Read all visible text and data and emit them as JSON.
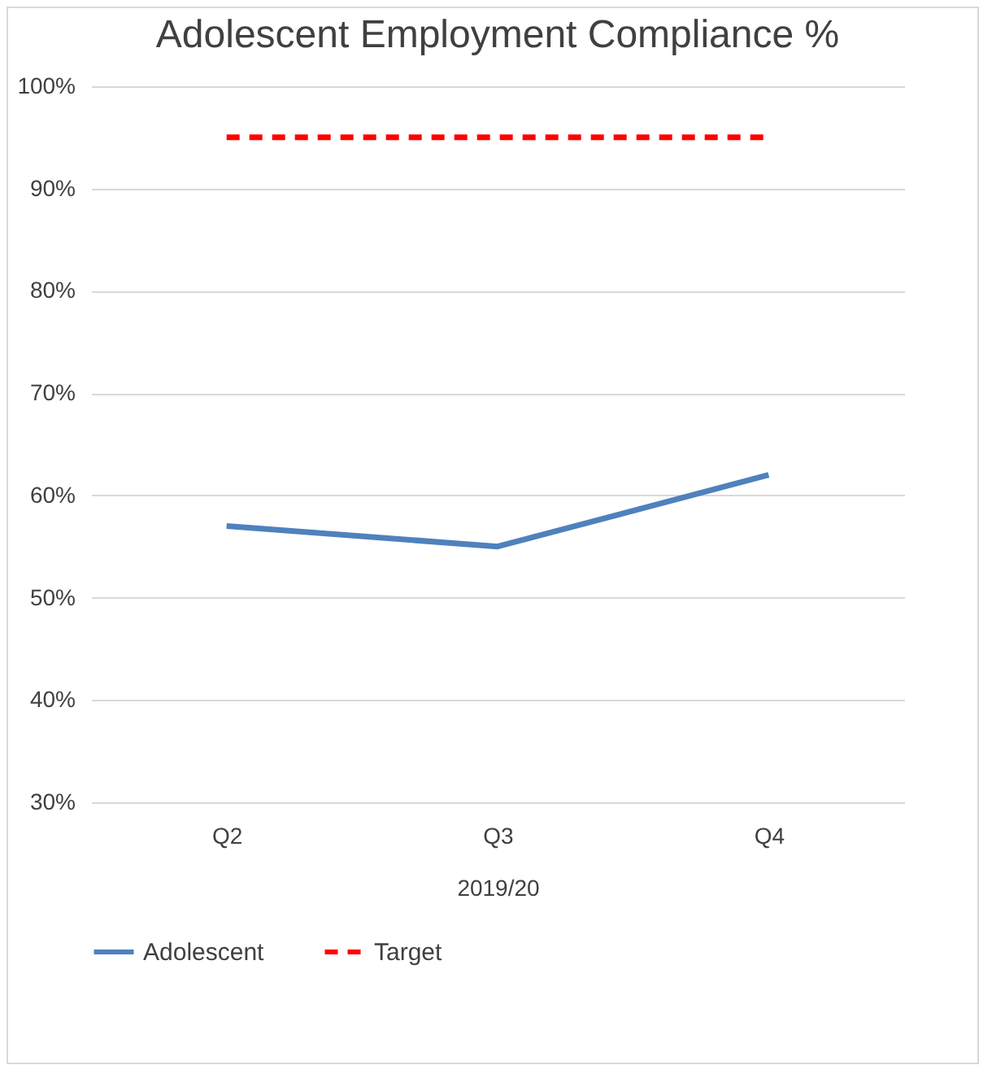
{
  "chart_data": {
    "type": "line",
    "title": "Adolescent Employment Compliance %",
    "xlabel": "2019/20",
    "categories": [
      "Q2",
      "Q3",
      "Q4"
    ],
    "series": [
      {
        "name": "Adolescent",
        "color": "#4f81bd",
        "line_style": "solid",
        "values": [
          57,
          55,
          62
        ]
      },
      {
        "name": "Target",
        "color": "#ff0000",
        "line_style": "dashed",
        "values": [
          95,
          95,
          95
        ]
      }
    ],
    "ylim": [
      30,
      100
    ],
    "yticks": [
      {
        "value": 30,
        "label": "30%"
      },
      {
        "value": 40,
        "label": "40%"
      },
      {
        "value": 50,
        "label": "50%"
      },
      {
        "value": 60,
        "label": "60%"
      },
      {
        "value": 70,
        "label": "70%"
      },
      {
        "value": 80,
        "label": "80%"
      },
      {
        "value": 90,
        "label": "90%"
      },
      {
        "value": 100,
        "label": "100%"
      }
    ],
    "grid": "y",
    "legend": "bottom"
  }
}
